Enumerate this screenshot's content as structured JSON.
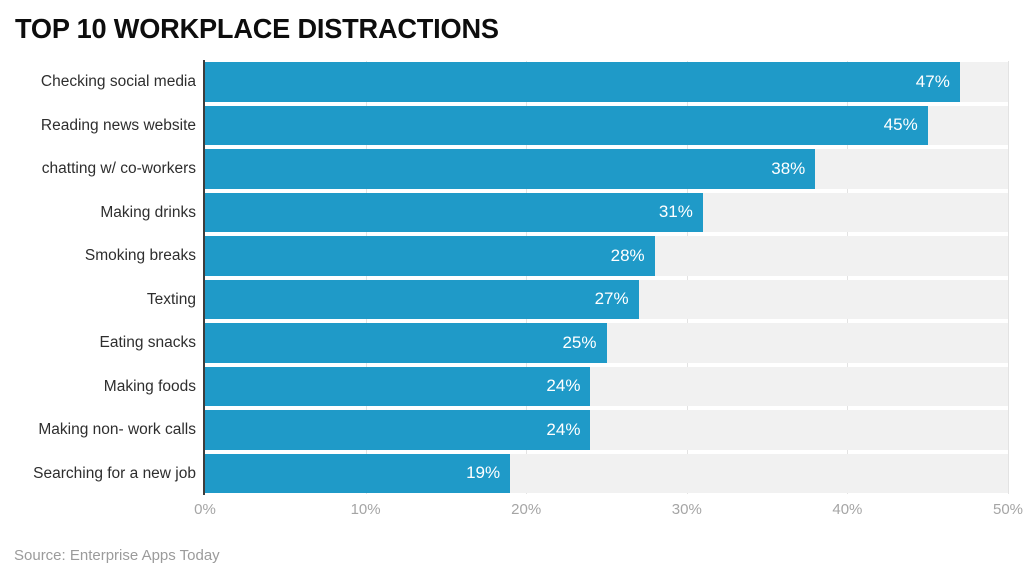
{
  "title": "TOP 10 WORKPLACE DISTRACTIONS",
  "source": "Source: Enterprise Apps Today",
  "chart_data": {
    "type": "bar",
    "orientation": "horizontal",
    "title": "TOP 10 WORKPLACE DISTRACTIONS",
    "categories": [
      "Checking social media",
      "Reading news website",
      "chatting w/ co-workers",
      "Making drinks",
      "Smoking breaks",
      "Texting",
      "Eating snacks",
      "Making foods",
      "Making non- work calls",
      "Searching for a new job"
    ],
    "values": [
      47,
      45,
      38,
      31,
      28,
      27,
      25,
      24,
      24,
      19
    ],
    "value_labels": [
      "47%",
      "45%",
      "38%",
      "31%",
      "28%",
      "27%",
      "25%",
      "24%",
      "24%",
      "19%"
    ],
    "xlabel": "",
    "ylabel": "",
    "xlim": [
      0,
      50
    ],
    "x_ticks": [
      0,
      10,
      20,
      30,
      40,
      50
    ],
    "x_tick_labels": [
      "0%",
      "10%",
      "20%",
      "30%",
      "40%",
      "50%"
    ],
    "grid": "vertical-gridlines-on",
    "legend": "none",
    "colors": {
      "bar": "#1f9ac8",
      "row_band": "#f1f1f1",
      "gridline": "#e3e3e3",
      "axis_line": "#3d3d3d",
      "value_label": "#ffffff",
      "category_label": "#2e2e2e",
      "tick_label": "#a5a5a5",
      "title": "#0d0d0d",
      "source": "#9b9b9b",
      "background": "#ffffff"
    }
  }
}
